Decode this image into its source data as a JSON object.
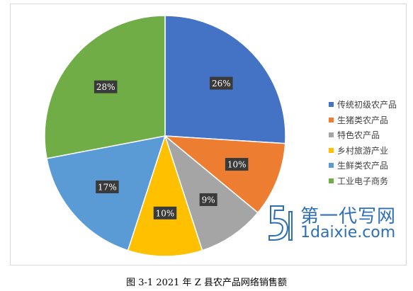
{
  "chart_data": {
    "type": "pie",
    "categories": [
      "传统初级农产品",
      "生猪类农产品",
      "特色农产品",
      "乡村旅游产业",
      "生鲜类农产品",
      "工业电子商务"
    ],
    "values": [
      26,
      10,
      9,
      10,
      17,
      28
    ],
    "labels": [
      "26%",
      "10%",
      "9%",
      "10%",
      "17%",
      "28%"
    ],
    "colors": [
      "#4472c4",
      "#ed7d31",
      "#a5a5a5",
      "#ffc000",
      "#5b9bd5",
      "#70ad47"
    ],
    "legend_position": "right",
    "start_angle": "top, clockwise"
  },
  "caption": "图 3-1 2021 年 Z 县农产品网络销售额",
  "watermark": {
    "cn": "第一代写网",
    "en": "1daixie.com"
  }
}
